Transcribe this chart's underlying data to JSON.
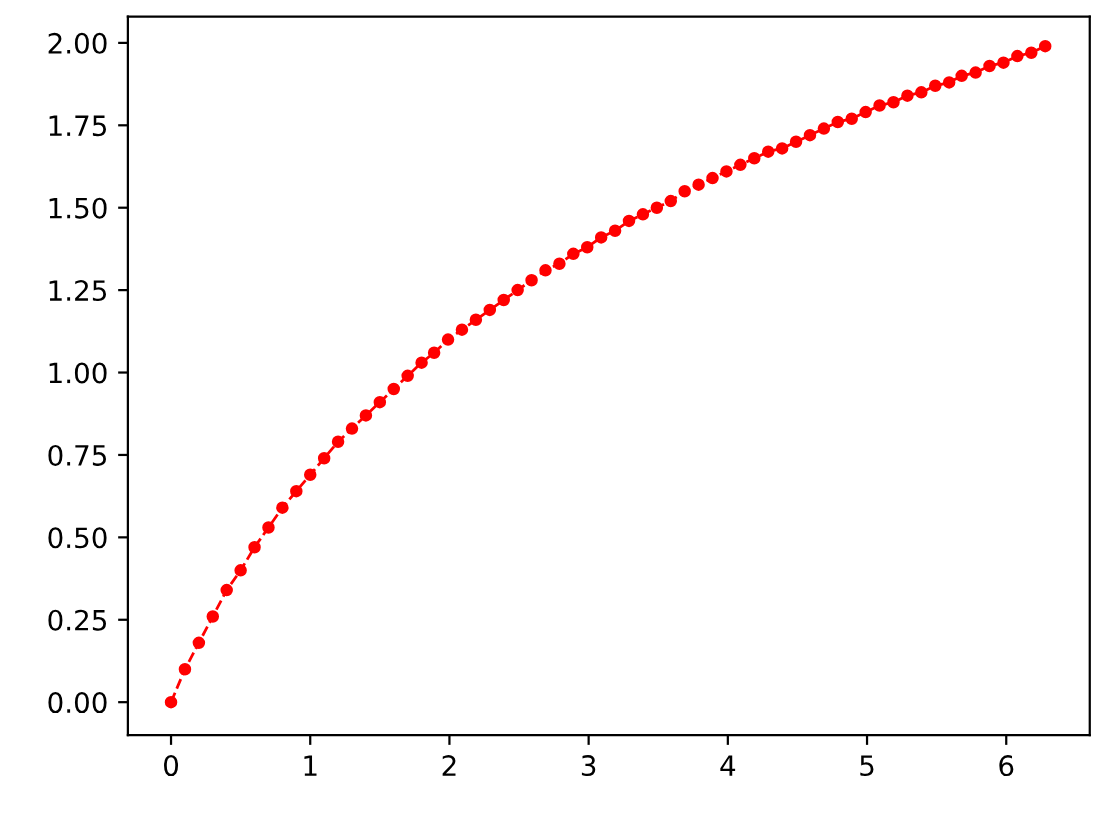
{
  "chart_data": {
    "type": "line",
    "x": [
      0.0,
      0.1,
      0.2,
      0.3,
      0.4,
      0.5,
      0.6,
      0.7,
      0.8,
      0.9,
      1.0,
      1.1,
      1.2,
      1.3,
      1.4,
      1.5,
      1.6,
      1.7,
      1.8,
      1.89,
      1.99,
      2.09,
      2.19,
      2.29,
      2.39,
      2.49,
      2.59,
      2.69,
      2.79,
      2.89,
      2.99,
      3.09,
      3.19,
      3.29,
      3.39,
      3.49,
      3.59,
      3.69,
      3.79,
      3.89,
      3.99,
      4.09,
      4.19,
      4.29,
      4.39,
      4.49,
      4.59,
      4.69,
      4.79,
      4.89,
      4.99,
      5.09,
      5.19,
      5.29,
      5.39,
      5.49,
      5.59,
      5.68,
      5.78,
      5.88,
      5.98,
      6.08,
      6.18,
      6.28
    ],
    "series": [
      {
        "color": "#ff0000",
        "values": [
          0.0,
          0.1,
          0.18,
          0.26,
          0.34,
          0.4,
          0.47,
          0.53,
          0.59,
          0.64,
          0.69,
          0.74,
          0.79,
          0.83,
          0.87,
          0.91,
          0.95,
          0.99,
          1.03,
          1.06,
          1.1,
          1.13,
          1.16,
          1.19,
          1.22,
          1.25,
          1.28,
          1.31,
          1.33,
          1.36,
          1.38,
          1.41,
          1.43,
          1.46,
          1.48,
          1.5,
          1.52,
          1.55,
          1.57,
          1.59,
          1.61,
          1.63,
          1.65,
          1.67,
          1.68,
          1.7,
          1.72,
          1.74,
          1.76,
          1.77,
          1.79,
          1.81,
          1.82,
          1.84,
          1.85,
          1.87,
          1.88,
          1.9,
          1.91,
          1.93,
          1.94,
          1.96,
          1.97,
          1.99
        ]
      }
    ],
    "xlim": [
      -0.31,
      6.6
    ],
    "ylim": [
      -0.1,
      2.08
    ],
    "xticks": [
      0,
      1,
      2,
      3,
      4,
      5,
      6
    ],
    "yticks": [
      {
        "value": 0,
        "label": "0.00"
      },
      {
        "value": 0.25,
        "label": "0.25"
      },
      {
        "value": 0.5,
        "label": "0.50"
      },
      {
        "value": 0.75,
        "label": "0.75"
      },
      {
        "value": 1,
        "label": "1.00"
      },
      {
        "value": 1.25,
        "label": "1.25"
      },
      {
        "value": 1.5,
        "label": "1.50"
      },
      {
        "value": 1.75,
        "label": "1.75"
      },
      {
        "value": 2,
        "label": "2.00"
      }
    ],
    "marker": "circle",
    "line_style": "dashed",
    "grid": false,
    "legend": false
  }
}
